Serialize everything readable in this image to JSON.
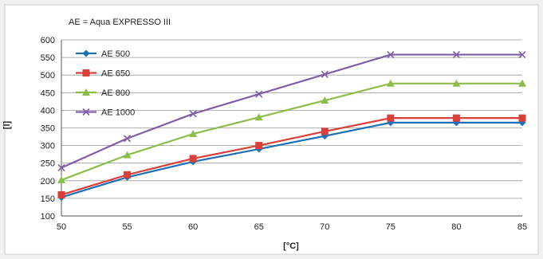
{
  "chart_data": {
    "type": "line",
    "note": "AE = Aqua EXPRESSO III",
    "xlabel": "[°C]",
    "ylabel": "[l]",
    "x": [
      50,
      55,
      60,
      65,
      70,
      75,
      80,
      85
    ],
    "xlim": [
      50,
      85
    ],
    "ylim": [
      100,
      600
    ],
    "yticks": [
      100,
      150,
      200,
      250,
      300,
      350,
      400,
      450,
      500,
      550,
      600
    ],
    "xticks": [
      50,
      55,
      60,
      65,
      70,
      75,
      80,
      85
    ],
    "grid": "horizontal",
    "legend_position": "top-left",
    "series": [
      {
        "name": "AE 500",
        "color": "#1f6fb5",
        "marker": "diamond",
        "values": [
          153,
          210,
          254,
          290,
          327,
          365,
          365,
          365
        ]
      },
      {
        "name": "AE 650",
        "color": "#d9403a",
        "marker": "square",
        "values": [
          160,
          217,
          263,
          300,
          340,
          378,
          378,
          378
        ]
      },
      {
        "name": "AE 800",
        "color": "#8cbc4a",
        "marker": "triangle",
        "values": [
          202,
          273,
          333,
          380,
          428,
          476,
          476,
          476
        ]
      },
      {
        "name": "AE 1000",
        "color": "#7d5fa8",
        "marker": "x",
        "values": [
          237,
          320,
          390,
          446,
          502,
          558,
          558,
          558
        ]
      }
    ]
  }
}
